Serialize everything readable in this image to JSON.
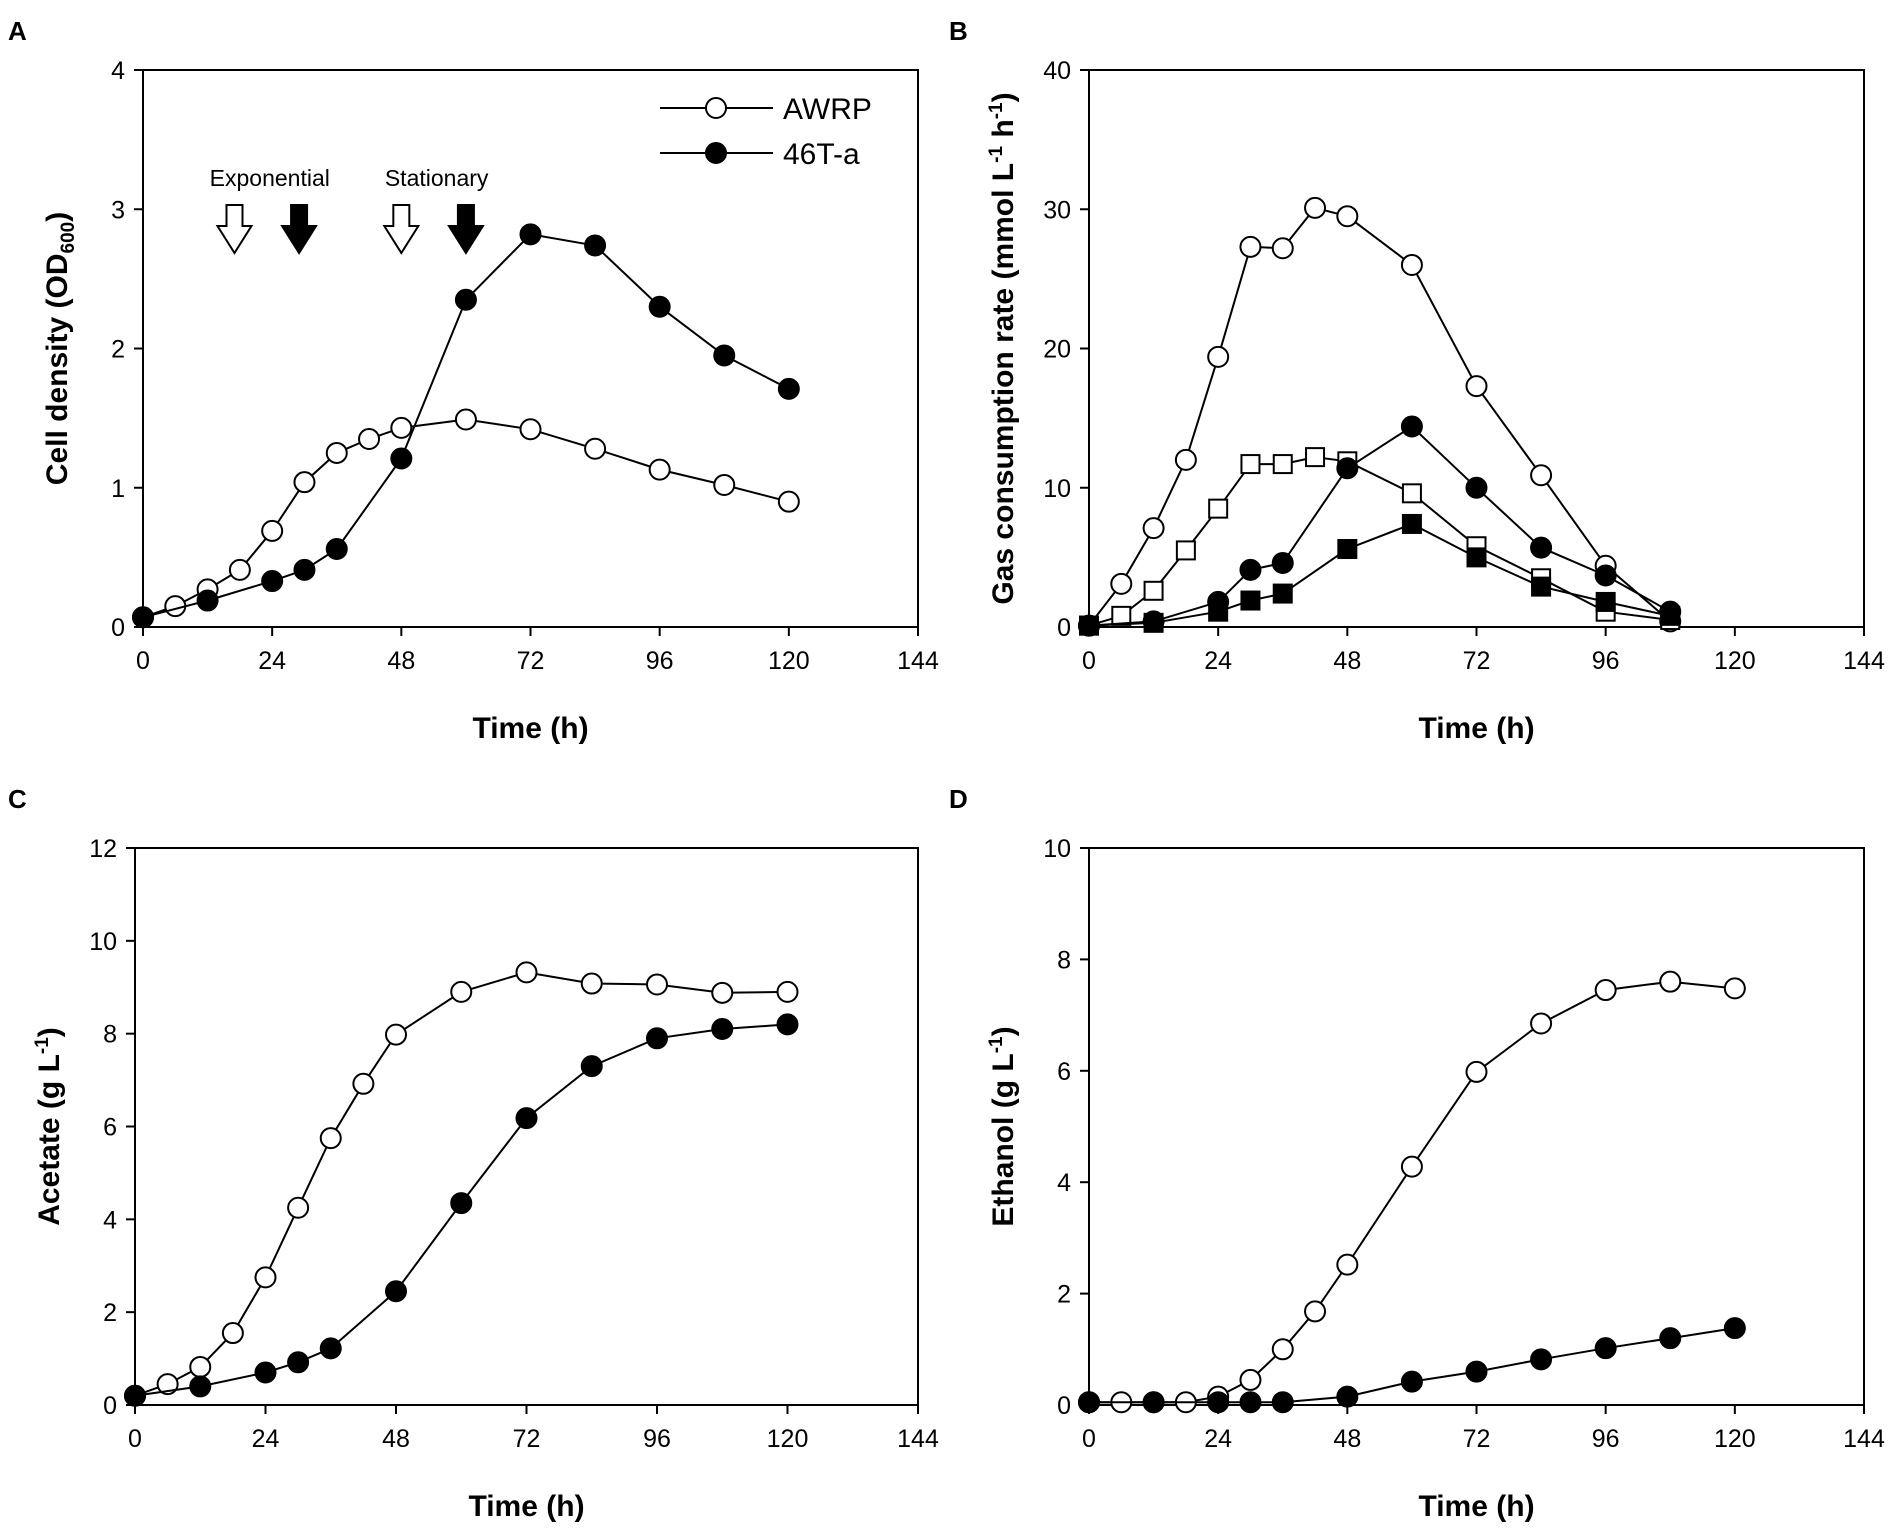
{
  "chart_data": [
    {
      "panel": "A",
      "type": "line",
      "xlabel": "Time (h)",
      "ylabel": "Cell density (OD",
      "ylabel_sub": "600",
      "ylabel_end": ")",
      "xlim": [
        0,
        144
      ],
      "ylim": [
        0,
        4
      ],
      "xticks": [
        "0",
        "24",
        "48",
        "72",
        "96",
        "120",
        "144"
      ],
      "yticks": [
        "0",
        "1",
        "2",
        "3",
        "4"
      ],
      "legend": [
        {
          "name": "AWRP",
          "marker": "circle",
          "fill": "#ffffff"
        },
        {
          "name": "46T-a",
          "marker": "circle",
          "fill": "#000000"
        }
      ],
      "annotations": [
        {
          "text": "Exponential",
          "arrows": [
            {
              "x": 17,
              "fill": "#ffffff"
            },
            {
              "x": 29,
              "fill": "#000000"
            }
          ]
        },
        {
          "text": "Stationary",
          "arrows": [
            {
              "x": 48,
              "fill": "#ffffff"
            },
            {
              "x": 60,
              "fill": "#000000"
            }
          ]
        }
      ],
      "series": [
        {
          "name": "AWRP",
          "marker": "circle",
          "fill": "#ffffff",
          "x": [
            0,
            6,
            12,
            18,
            24,
            30,
            36,
            42,
            48,
            60,
            72,
            84,
            96,
            108,
            120
          ],
          "y": [
            0.07,
            0.15,
            0.27,
            0.41,
            0.69,
            1.04,
            1.25,
            1.35,
            1.43,
            1.49,
            1.42,
            1.28,
            1.13,
            1.02,
            0.9
          ]
        },
        {
          "name": "46T-a",
          "marker": "circle",
          "fill": "#000000",
          "x": [
            0,
            12,
            24,
            30,
            36,
            48,
            60,
            72,
            84,
            96,
            108,
            120
          ],
          "y": [
            0.07,
            0.19,
            0.33,
            0.41,
            0.56,
            1.21,
            2.35,
            2.82,
            2.74,
            2.3,
            1.95,
            1.71
          ]
        }
      ]
    },
    {
      "panel": "B",
      "type": "line",
      "xlabel": "Time (h)",
      "ylabel": "Gas consumption rate (mmol L",
      "ylabel_sup1": "-1",
      "ylabel_mid": " h",
      "ylabel_sup2": "-1",
      "ylabel_end": ")",
      "xlim": [
        0,
        144
      ],
      "ylim": [
        0,
        40
      ],
      "xticks": [
        "0",
        "24",
        "48",
        "72",
        "96",
        "120",
        "144"
      ],
      "yticks": [
        "0",
        "10",
        "20",
        "30",
        "40"
      ],
      "series": [
        {
          "name": "AWRP circle",
          "marker": "circle",
          "fill": "#ffffff",
          "x": [
            0,
            6,
            12,
            18,
            24,
            30,
            36,
            42,
            48,
            60,
            72,
            84,
            96,
            108
          ],
          "y": [
            0.1,
            3.1,
            7.1,
            12.0,
            19.4,
            27.3,
            27.2,
            30.1,
            29.5,
            26.0,
            17.3,
            10.9,
            4.4,
            0.4
          ]
        },
        {
          "name": "AWRP square",
          "marker": "square",
          "fill": "#ffffff",
          "x": [
            0,
            6,
            12,
            18,
            24,
            30,
            36,
            42,
            48,
            60,
            72,
            84,
            96,
            108
          ],
          "y": [
            0.1,
            0.8,
            2.6,
            5.5,
            8.5,
            11.7,
            11.7,
            12.2,
            11.9,
            9.6,
            5.8,
            3.5,
            1.1,
            0.5
          ]
        },
        {
          "name": "46T-a circle",
          "marker": "circle",
          "fill": "#000000",
          "x": [
            0,
            12,
            24,
            30,
            36,
            48,
            60,
            72,
            84,
            96,
            108
          ],
          "y": [
            0.1,
            0.4,
            1.8,
            4.1,
            4.6,
            11.4,
            14.4,
            10.0,
            5.7,
            3.7,
            1.1
          ]
        },
        {
          "name": "46T-a square",
          "marker": "square",
          "fill": "#000000",
          "x": [
            0,
            12,
            24,
            30,
            36,
            48,
            60,
            72,
            84,
            96,
            108
          ],
          "y": [
            0.1,
            0.3,
            1.1,
            1.9,
            2.4,
            5.6,
            7.4,
            5.0,
            2.9,
            1.8,
            0.8
          ]
        }
      ]
    },
    {
      "panel": "C",
      "type": "line",
      "xlabel": "Time (h)",
      "ylabel": "Acetate (g L",
      "ylabel_sup1": "-1",
      "ylabel_end": ")",
      "xlim": [
        0,
        144
      ],
      "ylim": [
        0,
        12
      ],
      "xticks": [
        "0",
        "24",
        "48",
        "72",
        "96",
        "120",
        "144"
      ],
      "yticks": [
        "0",
        "2",
        "4",
        "6",
        "8",
        "10",
        "12"
      ],
      "series": [
        {
          "name": "AWRP",
          "marker": "circle",
          "fill": "#ffffff",
          "x": [
            0,
            6,
            12,
            18,
            24,
            30,
            36,
            42,
            48,
            60,
            72,
            84,
            96,
            108,
            120
          ],
          "y": [
            0.2,
            0.45,
            0.82,
            1.55,
            2.75,
            4.25,
            5.75,
            6.92,
            7.98,
            8.9,
            9.32,
            9.08,
            9.06,
            8.88,
            8.9
          ]
        },
        {
          "name": "46T-a",
          "marker": "circle",
          "fill": "#000000",
          "x": [
            0,
            12,
            24,
            30,
            36,
            48,
            60,
            72,
            84,
            96,
            108,
            120
          ],
          "y": [
            0.2,
            0.4,
            0.7,
            0.92,
            1.22,
            2.45,
            4.35,
            6.18,
            7.3,
            7.9,
            8.1,
            8.2
          ]
        }
      ]
    },
    {
      "panel": "D",
      "type": "line",
      "xlabel": "Time (h)",
      "ylabel": "Ethanol (g L",
      "ylabel_sup1": "-1",
      "ylabel_end": ")",
      "xlim": [
        0,
        144
      ],
      "ylim": [
        0,
        10
      ],
      "xticks": [
        "0",
        "24",
        "48",
        "72",
        "96",
        "120",
        "144"
      ],
      "yticks": [
        "0",
        "2",
        "4",
        "6",
        "8",
        "10"
      ],
      "series": [
        {
          "name": "AWRP",
          "marker": "circle",
          "fill": "#ffffff",
          "x": [
            0,
            6,
            12,
            18,
            24,
            30,
            36,
            42,
            48,
            60,
            72,
            84,
            96,
            108,
            120
          ],
          "y": [
            0.05,
            0.05,
            0.05,
            0.05,
            0.15,
            0.45,
            1.0,
            1.68,
            2.52,
            4.28,
            5.98,
            6.85,
            7.45,
            7.6,
            7.48
          ]
        },
        {
          "name": "46T-a",
          "marker": "circle",
          "fill": "#000000",
          "x": [
            0,
            12,
            24,
            30,
            36,
            48,
            60,
            72,
            84,
            96,
            108,
            120
          ],
          "y": [
            0.05,
            0.05,
            0.05,
            0.05,
            0.05,
            0.15,
            0.42,
            0.6,
            0.82,
            1.02,
            1.2,
            1.38
          ]
        }
      ]
    }
  ]
}
